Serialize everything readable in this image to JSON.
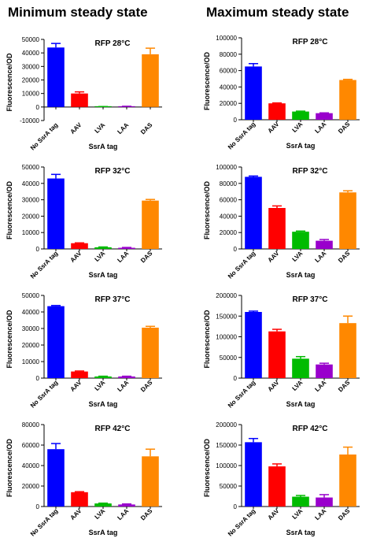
{
  "columns": [
    {
      "title": "Minimum steady state"
    },
    {
      "title": "Maximum steady state"
    }
  ],
  "colors": {
    "No SsrA tag": "#0000ff",
    "AAV": "#ff0000",
    "LVA": "#00bb00",
    "LAA": "#9900cc",
    "DAS": "#ff8800"
  },
  "chart_data": [
    {
      "type": "bar",
      "title": "RFP 28°C",
      "xlabel": "SsrA tag",
      "ylabel": "Fluorescence/OD",
      "categories": [
        "No SsrA tag",
        "AAV",
        "LVA",
        "LAA",
        "DAS"
      ],
      "values": [
        44000,
        10000,
        200,
        400,
        39000
      ],
      "errors": [
        3000,
        1200,
        150,
        150,
        4500
      ],
      "ylim": [
        -10000,
        50000
      ],
      "yticks": [
        -10000,
        0,
        10000,
        20000,
        30000,
        40000,
        50000
      ],
      "ytick_labels": [
        "-10000",
        "0",
        "10000",
        "20000",
        "30000",
        "40000",
        "50000"
      ]
    },
    {
      "type": "bar",
      "title": "RFP 28°C",
      "xlabel": "SsrA tag",
      "ylabel": "Fluorescence/OD",
      "categories": [
        "No SsrA tag",
        "AAV",
        "LVA",
        "LAA",
        "DAS"
      ],
      "values": [
        65000,
        20000,
        10000,
        8000,
        48500
      ],
      "errors": [
        3500,
        500,
        500,
        400,
        800
      ],
      "ylim": [
        0,
        100000
      ],
      "yticks": [
        0,
        20000,
        40000,
        60000,
        80000,
        100000
      ],
      "ytick_labels": [
        "0",
        "20000",
        "40000",
        "60000",
        "80000",
        "100000"
      ]
    },
    {
      "type": "bar",
      "title": "RFP 32°C",
      "xlabel": "SsrA tag",
      "ylabel": "Fluorescence/OD",
      "categories": [
        "No SsrA tag",
        "AAV",
        "LVA",
        "LAA",
        "DAS"
      ],
      "values": [
        43000,
        3500,
        1000,
        700,
        29500
      ],
      "errors": [
        2500,
        200,
        200,
        200,
        700
      ],
      "ylim": [
        0,
        50000
      ],
      "yticks": [
        0,
        10000,
        20000,
        30000,
        40000,
        50000
      ],
      "ytick_labels": [
        "0",
        "10000",
        "20000",
        "30000",
        "40000",
        "50000"
      ]
    },
    {
      "type": "bar",
      "title": "RFP 32°C",
      "xlabel": "SsrA tag",
      "ylabel": "Fluorescence/OD",
      "categories": [
        "No SsrA tag",
        "AAV",
        "LVA",
        "LAA",
        "DAS"
      ],
      "values": [
        88000,
        50000,
        21000,
        10000,
        69000
      ],
      "errors": [
        1000,
        2500,
        800,
        1500,
        2000
      ],
      "ylim": [
        0,
        100000
      ],
      "yticks": [
        0,
        20000,
        40000,
        60000,
        80000,
        100000
      ],
      "ytick_labels": [
        "0",
        "20000",
        "40000",
        "60000",
        "80000",
        "100000"
      ]
    },
    {
      "type": "bar",
      "title": "RFP 37°C",
      "xlabel": "SsrA tag",
      "ylabel": "Fluorescence/OD",
      "categories": [
        "No SsrA tag",
        "AAV",
        "LVA",
        "LAA",
        "DAS"
      ],
      "values": [
        43500,
        4000,
        1000,
        1000,
        30500
      ],
      "errors": [
        400,
        300,
        150,
        150,
        800
      ],
      "ylim": [
        0,
        50000
      ],
      "yticks": [
        0,
        10000,
        20000,
        30000,
        40000,
        50000
      ],
      "ytick_labels": [
        "0",
        "10000",
        "20000",
        "30000",
        "40000",
        "50000"
      ]
    },
    {
      "type": "bar",
      "title": "RFP 37°C",
      "xlabel": "SsrA tag",
      "ylabel": "Fluorescence/OD",
      "categories": [
        "No SsrA tag",
        "AAV",
        "LVA",
        "LAA",
        "DAS"
      ],
      "values": [
        160000,
        113000,
        47000,
        33000,
        133000
      ],
      "errors": [
        2000,
        5000,
        5000,
        3000,
        17000
      ],
      "ylim": [
        0,
        200000
      ],
      "yticks": [
        0,
        50000,
        100000,
        150000,
        200000
      ],
      "ytick_labels": [
        "0",
        "50000",
        "100000",
        "150000",
        "200000"
      ]
    },
    {
      "type": "bar",
      "title": "RFP 42°C",
      "xlabel": "SsrA tag",
      "ylabel": "Fluorescence/OD",
      "categories": [
        "No SsrA tag",
        "AAV",
        "LVA",
        "LAA",
        "DAS"
      ],
      "values": [
        56000,
        14000,
        3000,
        2000,
        49000
      ],
      "errors": [
        5500,
        500,
        300,
        500,
        7000
      ],
      "ylim": [
        0,
        80000
      ],
      "yticks": [
        0,
        20000,
        40000,
        60000,
        80000
      ],
      "ytick_labels": [
        "0",
        "20000",
        "40000",
        "60000",
        "80000"
      ]
    },
    {
      "type": "bar",
      "title": "RFP 42°C",
      "xlabel": "SsrA tag",
      "ylabel": "Fluorescence/OD",
      "categories": [
        "No SsrA tag",
        "AAV",
        "LVA",
        "LAA",
        "DAS"
      ],
      "values": [
        157000,
        98000,
        24000,
        22000,
        127000
      ],
      "errors": [
        9000,
        6000,
        3000,
        7000,
        18000
      ],
      "ylim": [
        0,
        200000
      ],
      "yticks": [
        0,
        50000,
        100000,
        150000,
        200000
      ],
      "ytick_labels": [
        "0",
        "50000",
        "100000",
        "150000",
        "200000"
      ]
    }
  ]
}
